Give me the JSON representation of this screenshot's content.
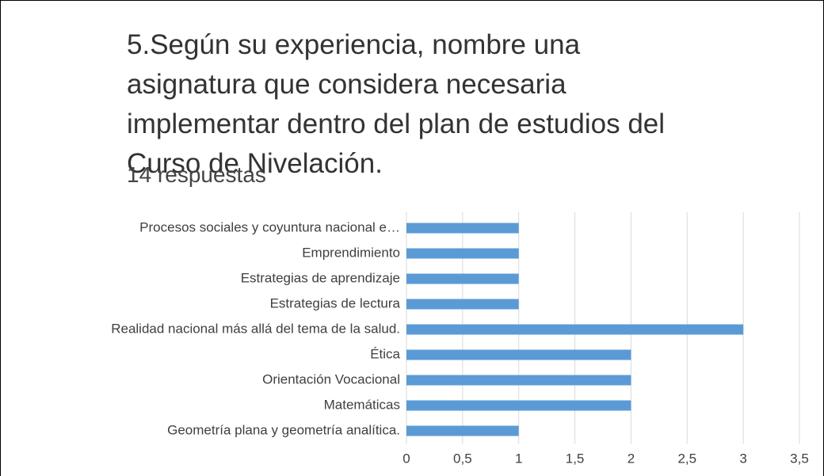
{
  "chart_data": {
    "type": "barh",
    "title": "5.Según su experiencia, nombre una asignatura que considera necesaria implementar dentro del plan de estudios del Curso de Nivelación.",
    "subtitle": "14 respuestas",
    "categories": [
      "Procesos sociales y coyuntura nacional e…",
      "Emprendimiento",
      "Estrategias de aprendizaje",
      "Estrategias de lectura",
      "Realidad nacional más allá del tema de la salud.",
      "Ética",
      "Orientación Vocacional",
      "Matemáticas",
      "Geometría plana y geometría analítica."
    ],
    "values": [
      1,
      1,
      1,
      1,
      3,
      2,
      2,
      2,
      1
    ],
    "color": "#5b9bd5",
    "xlim": [
      0,
      3.5
    ],
    "xticks": [
      0,
      {
        "value": 0.5,
        "label": "0,5"
      },
      1,
      {
        "value": 1.5,
        "label": "1,5"
      },
      2,
      {
        "value": 2.5,
        "label": "2,5"
      },
      3,
      {
        "value": 3.5,
        "label": "3,5"
      }
    ],
    "grid": true
  }
}
